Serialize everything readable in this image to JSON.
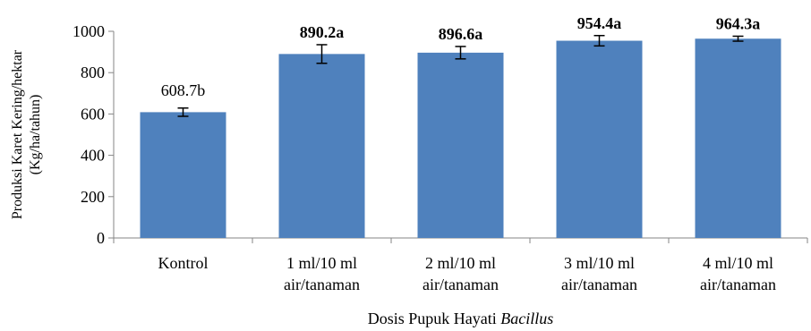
{
  "chart_data": {
    "type": "bar",
    "categories": [
      [
        "Kontrol"
      ],
      [
        "1 ml/10 ml",
        "air/tanaman"
      ],
      [
        "2 ml/10 ml",
        "air/tanaman"
      ],
      [
        "3 ml/10 ml",
        "air/tanaman"
      ],
      [
        "4 ml/10 ml",
        "air/tanaman"
      ]
    ],
    "values": [
      608.7,
      890.2,
      896.6,
      954.4,
      964.3
    ],
    "error": [
      20,
      45,
      30,
      25,
      12
    ],
    "data_labels": [
      "608.7b",
      "890.2a",
      "896.6a",
      "954.4a",
      "964.3a"
    ],
    "data_label_bold": [
      false,
      true,
      true,
      true,
      true
    ],
    "xlabel_prefix": "Dosis Pupuk Hayati ",
    "xlabel_italic": "Bacillus",
    "ylabel_lines": [
      "Produksi Karet Kering/hektar",
      "(Kg/ha/tahun)"
    ],
    "ylim": [
      0,
      1000
    ],
    "yticks": [
      0,
      200,
      400,
      600,
      800,
      1000
    ],
    "grid": false,
    "bar_color": "#4f81bd"
  }
}
